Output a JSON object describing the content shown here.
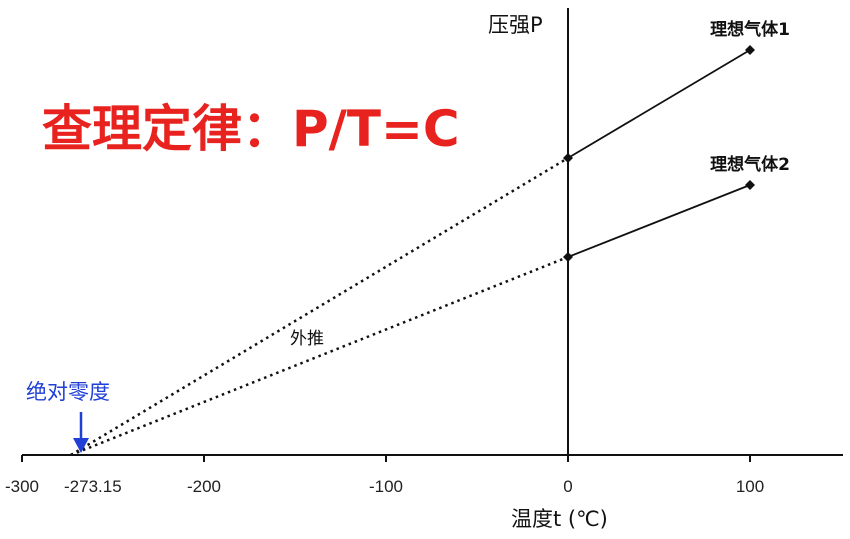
{
  "chart_data": {
    "type": "line",
    "title": "查理定律：P/T=C",
    "xlabel": "温度t (℃)",
    "ylabel": "压强P",
    "xlim": [
      -300,
      150
    ],
    "xticks": [
      -300,
      -200,
      -100,
      0,
      100
    ],
    "ylim": [
      0,
      2.3
    ],
    "grid": false,
    "series": [
      {
        "name": "理想气体1",
        "x": [
          -273.15,
          0,
          100
        ],
        "y": [
          0,
          1.65,
          2.25
        ],
        "measured_from": 0
      },
      {
        "name": "理想气体2",
        "x": [
          -273.15,
          0,
          100
        ],
        "y": [
          0,
          1.1,
          1.5
        ],
        "measured_from": 0
      }
    ],
    "annotations": {
      "extrapolation": "外推",
      "absolute_zero_label": "绝对零度",
      "absolute_zero_value": "-273.15"
    },
    "colors": {
      "title": "#e8231f",
      "absolute_zero": "#1f3fd6",
      "line": "#111111"
    }
  }
}
